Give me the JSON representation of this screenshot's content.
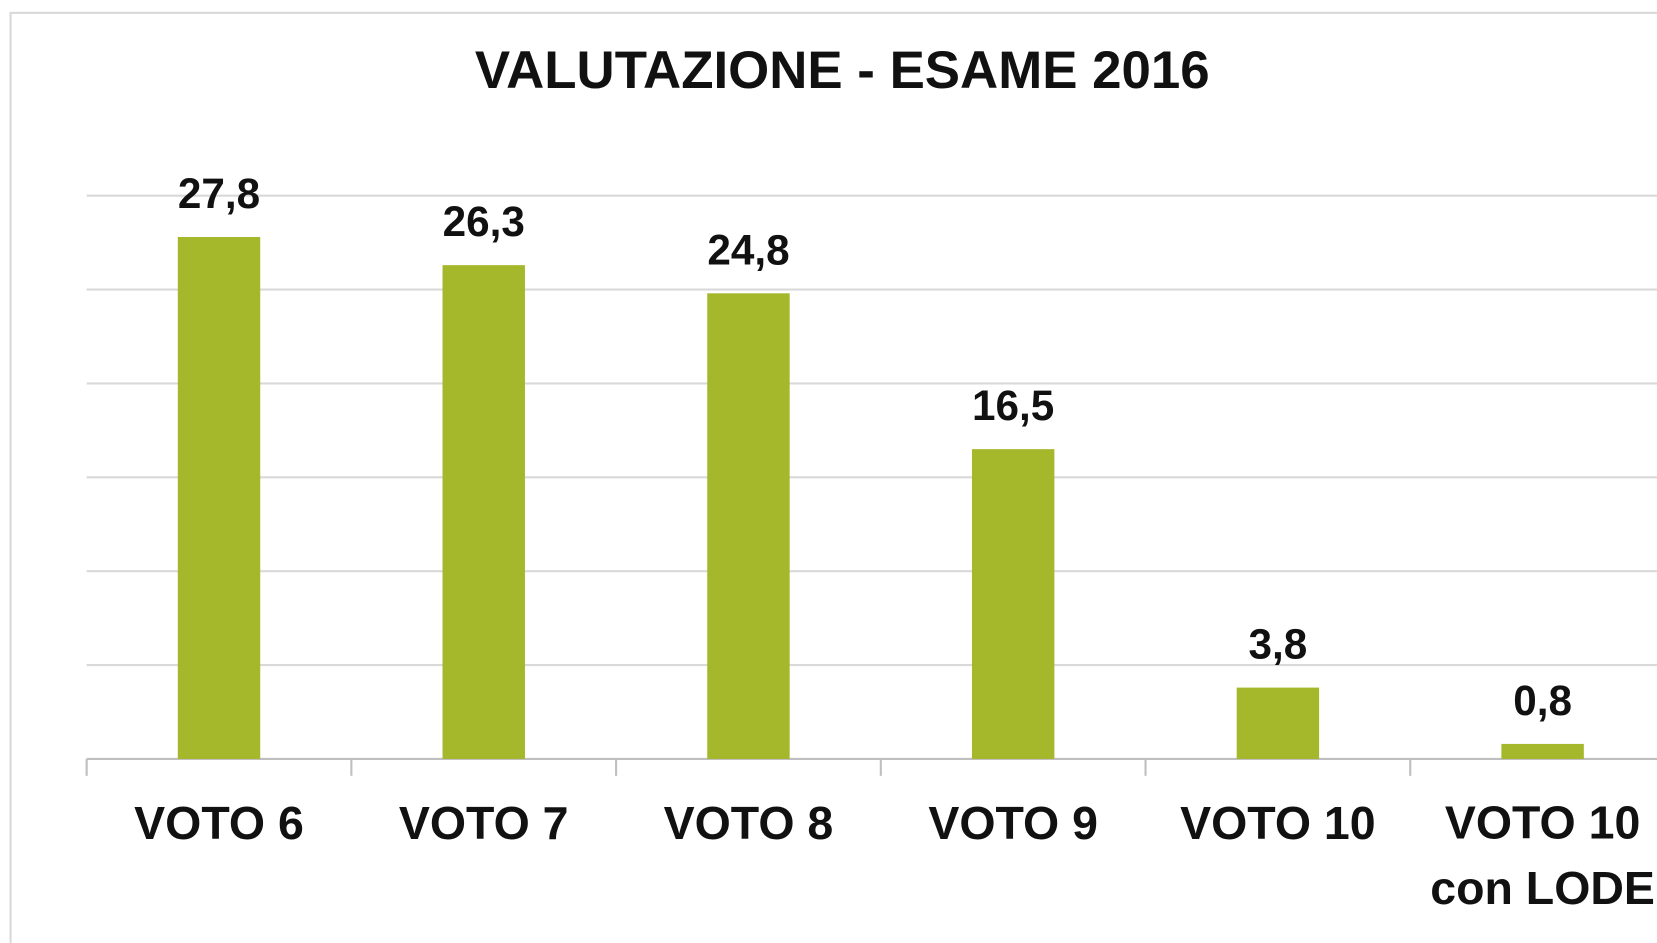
{
  "chart_data": {
    "type": "bar",
    "title": "VALUTAZIONE - ESAME 2016",
    "categories": [
      "VOTO 6",
      "VOTO 7",
      "VOTO 8",
      "VOTO 9",
      "VOTO 10",
      "VOTO 10 con LODE"
    ],
    "values": [
      27.8,
      26.3,
      24.8,
      16.5,
      3.8,
      0.8
    ],
    "value_labels": [
      "27,8",
      "26,3",
      "24,8",
      "16,5",
      "3,8",
      "0,8"
    ],
    "color": "#a5b72a",
    "ylim": [
      0,
      30
    ],
    "yticks": [
      0,
      5,
      10,
      15,
      20,
      25,
      30
    ],
    "grid": true
  }
}
